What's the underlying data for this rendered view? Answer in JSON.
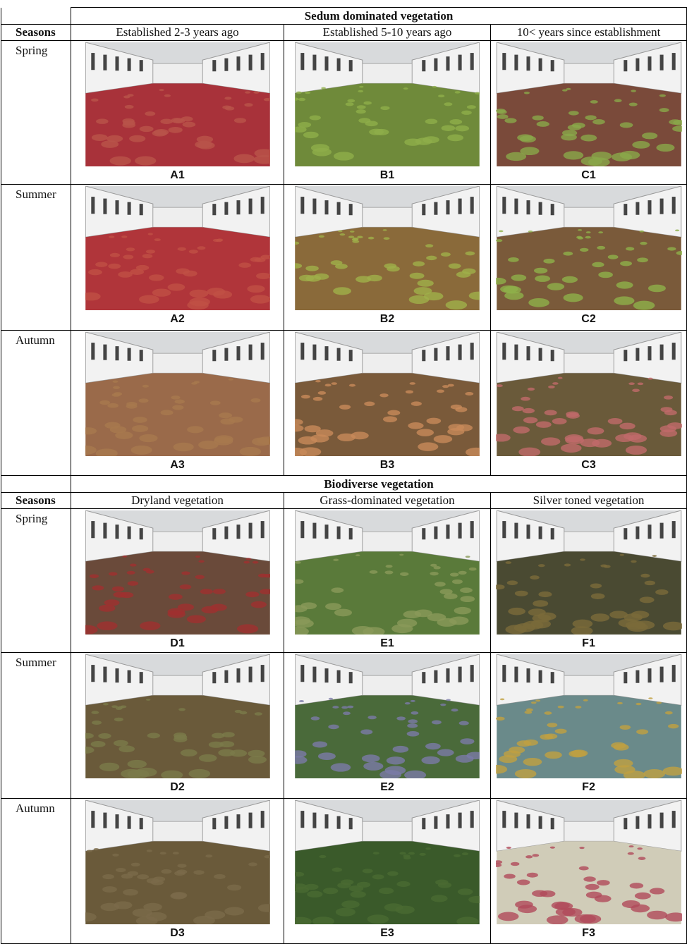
{
  "sections": [
    {
      "title": "Sedum dominated vegetation",
      "header": [
        "Seasons",
        "Established 2-3 years ago",
        "Established 5-10 years ago",
        "10< years since establishment"
      ],
      "rows": [
        {
          "season": "Spring",
          "labels": [
            "A1",
            "B1",
            "C1"
          ]
        },
        {
          "season": "Summer",
          "labels": [
            "A2",
            "B2",
            "C2"
          ]
        },
        {
          "season": "Autumn",
          "labels": [
            "A3",
            "B3",
            "C3"
          ]
        }
      ]
    },
    {
      "title": "Biodiverse vegetation",
      "header": [
        "Seasons",
        "Dryland vegetation",
        "Grass-dominated vegetation",
        "Silver toned vegetation"
      ],
      "rows": [
        {
          "season": "Spring",
          "labels": [
            "D1",
            "E1",
            "F1"
          ]
        },
        {
          "season": "Summer",
          "labels": [
            "D2",
            "E2",
            "F2"
          ]
        },
        {
          "season": "Autumn",
          "labels": [
            "D3",
            "E3",
            "F3"
          ]
        }
      ]
    }
  ]
}
